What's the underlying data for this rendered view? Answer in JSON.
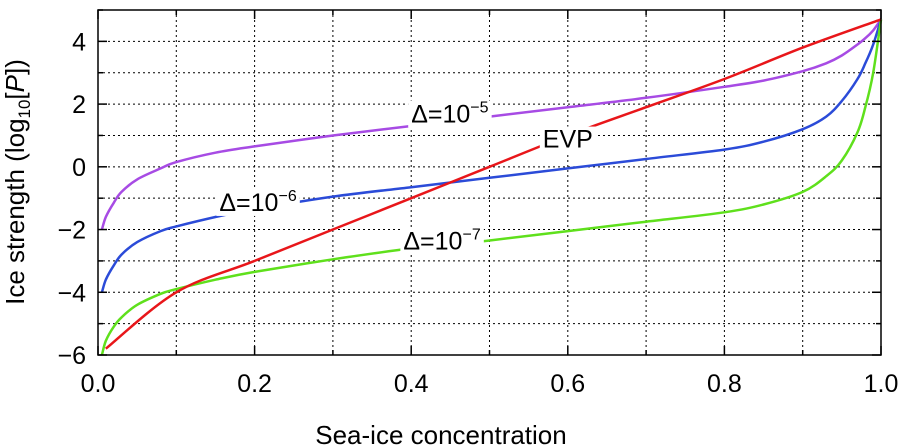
{
  "chart_data": {
    "type": "line",
    "title": "",
    "xlabel": "Sea-ice concentration",
    "ylabel_parts": {
      "prefix": "Ice strength (log",
      "subscript": "10",
      "mid": "[",
      "var": "P",
      "suffix": "])"
    },
    "xlim": [
      0,
      1
    ],
    "ylim": [
      -6,
      5
    ],
    "grid": true,
    "x_major_ticks": [
      {
        "value": 0.0,
        "label": "0.0"
      },
      {
        "value": 0.2,
        "label": "0.2"
      },
      {
        "value": 0.4,
        "label": "0.4"
      },
      {
        "value": 0.6,
        "label": "0.6"
      },
      {
        "value": 0.8,
        "label": "0.8"
      },
      {
        "value": 1.0,
        "label": "1.0"
      }
    ],
    "x_minor_ticks": [
      0.1,
      0.3,
      0.5,
      0.7,
      0.9
    ],
    "y_major_ticks": [
      {
        "value": 4,
        "label": "4"
      },
      {
        "value": 2,
        "label": "2"
      },
      {
        "value": 0,
        "label": "0"
      },
      {
        "value": -2,
        "label": "−2"
      },
      {
        "value": -4,
        "label": "−4"
      },
      {
        "value": -6,
        "label": "−6"
      }
    ],
    "y_minor_ticks": [
      5,
      3,
      1,
      -1,
      -3,
      -5
    ],
    "series": [
      {
        "name": "EVP",
        "color": "#e8161a",
        "x": [
          0.01,
          0.1,
          0.2,
          0.3,
          0.4,
          0.5,
          0.6,
          0.7,
          0.8,
          0.9,
          1.0
        ],
        "y": [
          -5.8,
          -4.0,
          -3.0,
          -2.0,
          -1.0,
          0.0,
          1.0,
          1.9,
          2.8,
          3.8,
          4.7
        ]
      },
      {
        "name": "Δ=10⁻⁵",
        "color": "#a74be4",
        "x": [
          0.005,
          0.01,
          0.02,
          0.03,
          0.05,
          0.08,
          0.1,
          0.15,
          0.2,
          0.3,
          0.4,
          0.5,
          0.6,
          0.7,
          0.8,
          0.85,
          0.9,
          0.93,
          0.95,
          0.97,
          0.98,
          0.99,
          1.0
        ],
        "y": [
          -2.0,
          -1.6,
          -1.15,
          -0.8,
          -0.4,
          -0.05,
          0.15,
          0.45,
          0.65,
          1.0,
          1.3,
          1.6,
          1.9,
          2.2,
          2.55,
          2.75,
          3.05,
          3.3,
          3.55,
          3.9,
          4.1,
          4.35,
          4.7
        ]
      },
      {
        "name": "Δ=10⁻⁶",
        "color": "#2b4bd8",
        "x": [
          0.005,
          0.01,
          0.02,
          0.03,
          0.05,
          0.08,
          0.1,
          0.15,
          0.2,
          0.3,
          0.4,
          0.5,
          0.6,
          0.7,
          0.8,
          0.85,
          0.9,
          0.93,
          0.95,
          0.97,
          0.98,
          0.99,
          1.0
        ],
        "y": [
          -4.0,
          -3.6,
          -3.15,
          -2.8,
          -2.4,
          -2.05,
          -1.9,
          -1.6,
          -1.35,
          -0.95,
          -0.65,
          -0.35,
          -0.05,
          0.25,
          0.55,
          0.8,
          1.2,
          1.6,
          2.1,
          2.8,
          3.3,
          3.9,
          4.7
        ]
      },
      {
        "name": "Δ=10⁻⁷",
        "color": "#5fe01c",
        "x": [
          0.005,
          0.01,
          0.02,
          0.03,
          0.05,
          0.08,
          0.1,
          0.15,
          0.2,
          0.3,
          0.4,
          0.5,
          0.6,
          0.7,
          0.8,
          0.85,
          0.9,
          0.93,
          0.95,
          0.97,
          0.98,
          0.99,
          1.0
        ],
        "y": [
          -6.0,
          -5.55,
          -5.1,
          -4.8,
          -4.4,
          -4.05,
          -3.9,
          -3.6,
          -3.35,
          -2.95,
          -2.6,
          -2.35,
          -2.05,
          -1.75,
          -1.45,
          -1.2,
          -0.8,
          -0.3,
          0.2,
          1.1,
          1.9,
          3.0,
          4.7
        ]
      }
    ],
    "annotations": [
      {
        "series": "EVP",
        "base": "EVP",
        "sup": "",
        "x": 0.6,
        "y": 0.9,
        "anchor": "middle"
      },
      {
        "series": "Δ=10⁻⁵",
        "base": "Δ=10",
        "sup": "−5",
        "x": 0.4,
        "y": 1.7,
        "anchor": "start"
      },
      {
        "series": "Δ=10⁻⁶",
        "base": "Δ=10",
        "sup": "−6",
        "x": 0.155,
        "y": -1.12,
        "anchor": "start"
      },
      {
        "series": "Δ=10⁻⁷",
        "base": "Δ=10",
        "sup": "−7",
        "x": 0.39,
        "y": -2.35,
        "anchor": "start"
      }
    ]
  }
}
